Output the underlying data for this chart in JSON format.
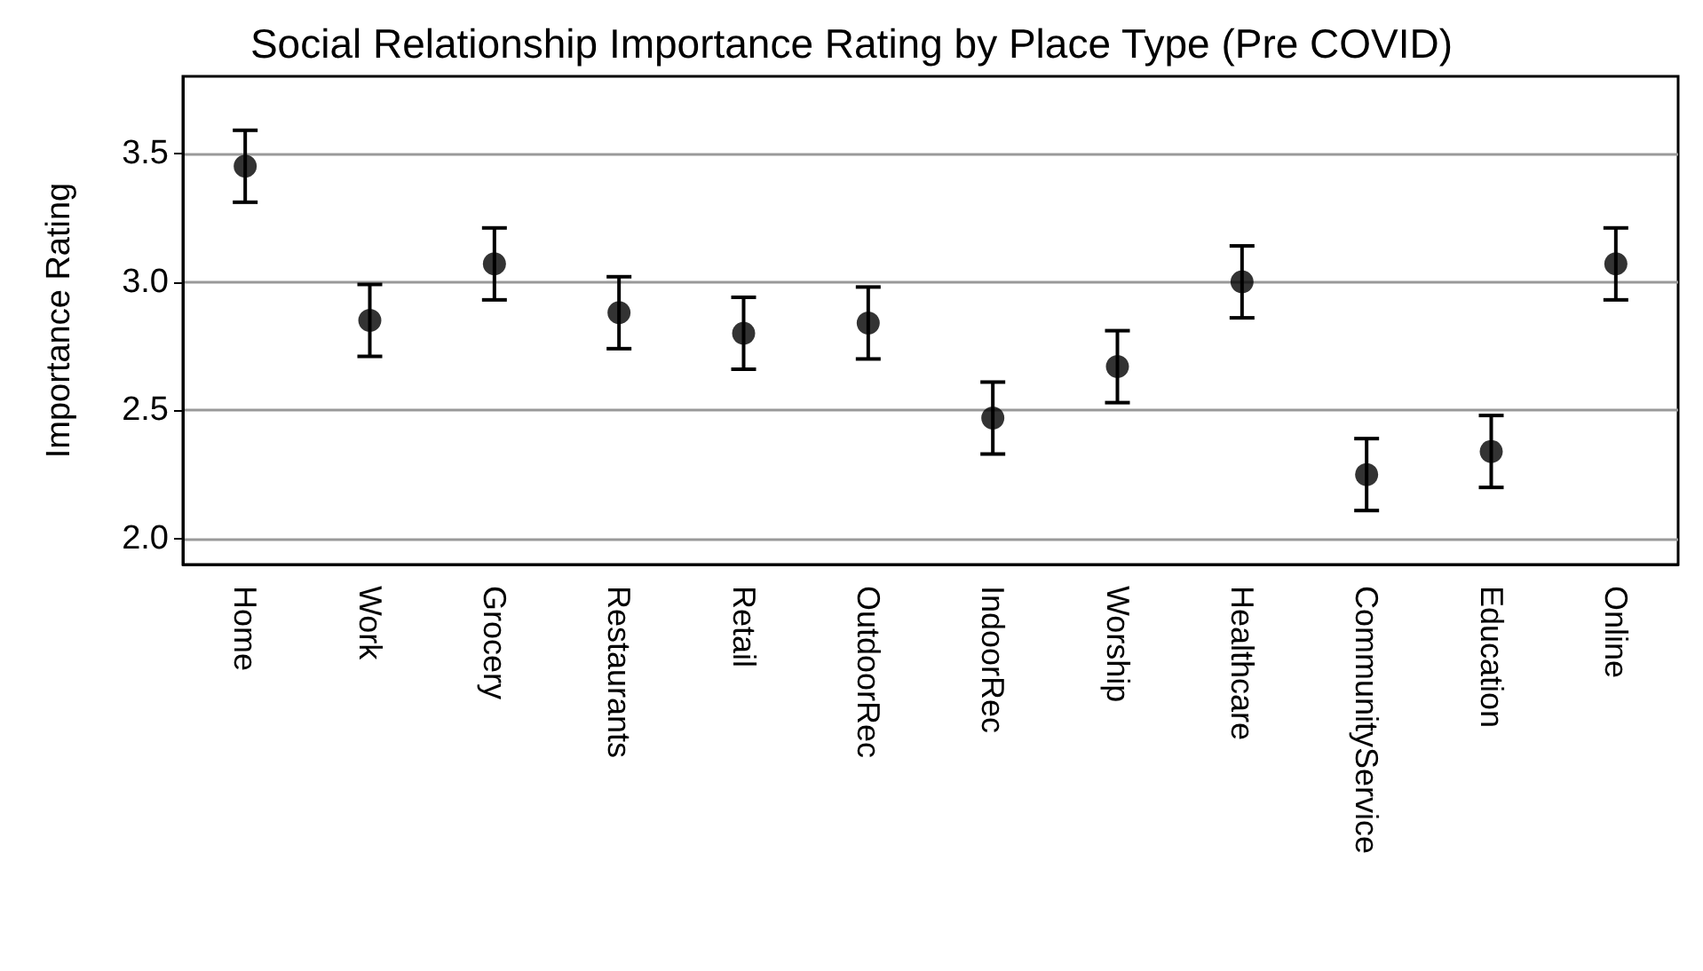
{
  "chart_data": {
    "type": "scatter",
    "title": "Social Relationship Importance Rating by Place Type (Pre COVID)",
    "ylabel": "Importance Rating",
    "categories": [
      "Home",
      "Work",
      "Grocery",
      "Restaurants",
      "Retail",
      "OutdoorRec",
      "IndoorRec",
      "Worship",
      "Healthcare",
      "CommunityService",
      "Education",
      "Online"
    ],
    "values": [
      3.45,
      2.85,
      3.07,
      2.88,
      2.8,
      2.84,
      2.47,
      2.67,
      3.0,
      2.25,
      2.34,
      3.07
    ],
    "errors": [
      0.14,
      0.14,
      0.14,
      0.14,
      0.14,
      0.14,
      0.14,
      0.14,
      0.14,
      0.14,
      0.14,
      0.14
    ],
    "color": "#000000",
    "marker": "circle",
    "ylim": [
      1.9,
      3.8
    ],
    "yticks": [
      {
        "value": 2,
        "label": "2.0"
      },
      {
        "value": 2.5,
        "label": "2.5"
      },
      {
        "value": 3,
        "label": "3.0"
      },
      {
        "value": 3.5,
        "label": "3.5"
      }
    ],
    "grid": "y"
  }
}
